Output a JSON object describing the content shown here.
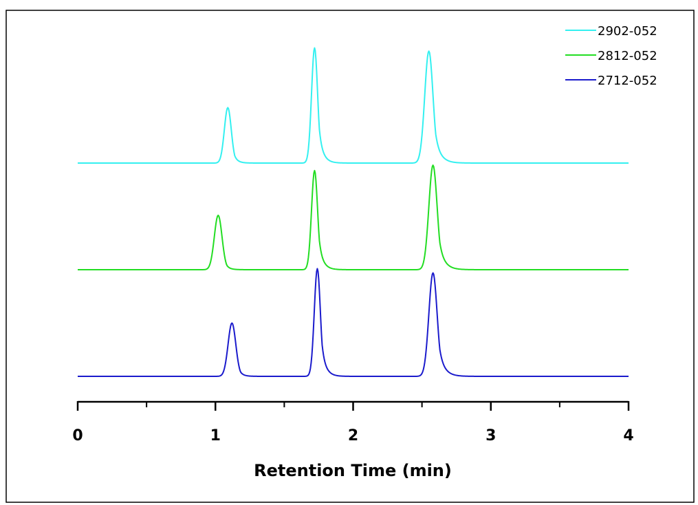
{
  "chart_data": {
    "type": "line",
    "title": "",
    "xlabel": "Retention Time (min)",
    "ylabel": "",
    "xlim": [
      0,
      4
    ],
    "x_ticks": [
      "0",
      "1",
      "2",
      "3",
      "4"
    ],
    "minor_ticks": [
      0.5,
      1.5,
      2.5,
      3.5
    ],
    "grid": false,
    "legend_position": "top-right",
    "series": [
      {
        "name": "2902-052",
        "color": "#33f0f0",
        "offset": 2.0,
        "peaks": [
          {
            "x": 1.09,
            "height": 0.52,
            "sigma": 0.025,
            "tail": 0.03
          },
          {
            "x": 1.72,
            "height": 1.08,
            "sigma": 0.022,
            "tail": 0.035
          },
          {
            "x": 2.55,
            "height": 1.05,
            "sigma": 0.03,
            "tail": 0.045
          }
        ]
      },
      {
        "name": "2812-052",
        "color": "#22dd22",
        "offset": 1.0,
        "peaks": [
          {
            "x": 1.02,
            "height": 0.51,
            "sigma": 0.028,
            "tail": 0.03
          },
          {
            "x": 1.72,
            "height": 0.93,
            "sigma": 0.022,
            "tail": 0.035
          },
          {
            "x": 2.58,
            "height": 0.98,
            "sigma": 0.03,
            "tail": 0.045
          }
        ]
      },
      {
        "name": "2712-052",
        "color": "#1a1acc",
        "offset": 0.0,
        "peaks": [
          {
            "x": 1.12,
            "height": 0.5,
            "sigma": 0.028,
            "tail": 0.03
          },
          {
            "x": 1.74,
            "height": 1.01,
            "sigma": 0.022,
            "tail": 0.035
          },
          {
            "x": 2.58,
            "height": 0.97,
            "sigma": 0.03,
            "tail": 0.045
          }
        ]
      }
    ]
  }
}
